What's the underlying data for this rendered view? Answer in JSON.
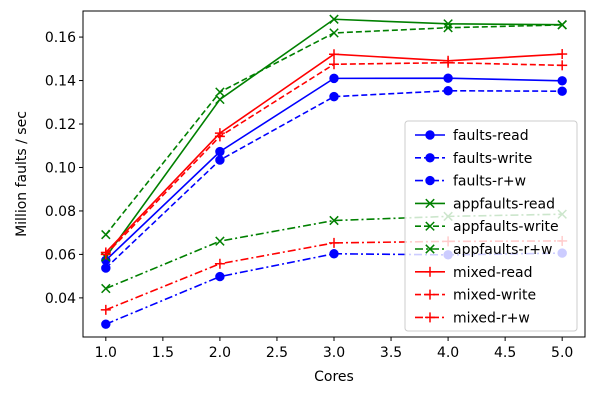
{
  "chart_data": {
    "type": "line",
    "title": "",
    "xlabel": "Cores",
    "ylabel": "Million faults / sec",
    "xlim": [
      0.8,
      5.2
    ],
    "ylim": [
      0.022,
      0.172
    ],
    "xticks": [
      "1.0",
      "1.5",
      "2.0",
      "2.5",
      "3.0",
      "3.5",
      "4.0",
      "4.5",
      "5.0"
    ],
    "yticks": [
      "0.04",
      "0.06",
      "0.08",
      "0.10",
      "0.12",
      "0.14",
      "0.16"
    ],
    "grid": false,
    "legend_position": "lower-right",
    "x": [
      1,
      2,
      3,
      4,
      5
    ],
    "series": [
      {
        "name": "faults-read",
        "color": "#0000ff",
        "linestyle": "solid",
        "marker": "circle",
        "values": [
          0.0573,
          0.1073,
          0.141,
          0.1411,
          0.1399
        ]
      },
      {
        "name": "faults-write",
        "color": "#0000ff",
        "linestyle": "dashed",
        "marker": "circle",
        "values": [
          0.0537,
          0.1034,
          0.1326,
          0.1353,
          0.1351
        ]
      },
      {
        "name": "faults-r+w",
        "color": "#0000ff",
        "linestyle": "dashdot",
        "marker": "circle",
        "values": [
          0.0279,
          0.0498,
          0.0603,
          0.0598,
          0.0606
        ]
      },
      {
        "name": "appfaults-read",
        "color": "#008000",
        "linestyle": "solid",
        "marker": "x",
        "values": [
          0.0588,
          0.1313,
          0.1682,
          0.1661,
          0.1657
        ]
      },
      {
        "name": "appfaults-write",
        "color": "#008000",
        "linestyle": "dashed",
        "marker": "x",
        "values": [
          0.0691,
          0.1347,
          0.1619,
          0.1643,
          0.1656
        ]
      },
      {
        "name": "appfaults-r+w",
        "color": "#008000",
        "linestyle": "dashdot",
        "marker": "x",
        "values": [
          0.0443,
          0.0661,
          0.0756,
          0.0775,
          0.0785
        ]
      },
      {
        "name": "mixed-read",
        "color": "#ff0000",
        "linestyle": "solid",
        "marker": "plus",
        "values": [
          0.0609,
          0.1158,
          0.1521,
          0.1491,
          0.1522
        ]
      },
      {
        "name": "mixed-write",
        "color": "#ff0000",
        "linestyle": "dashed",
        "marker": "plus",
        "values": [
          0.06,
          0.1143,
          0.1475,
          0.1482,
          0.147
        ]
      },
      {
        "name": "mixed-r+w",
        "color": "#ff0000",
        "linestyle": "dashdot",
        "marker": "plus",
        "values": [
          0.0345,
          0.0557,
          0.0653,
          0.066,
          0.0662
        ]
      }
    ]
  }
}
